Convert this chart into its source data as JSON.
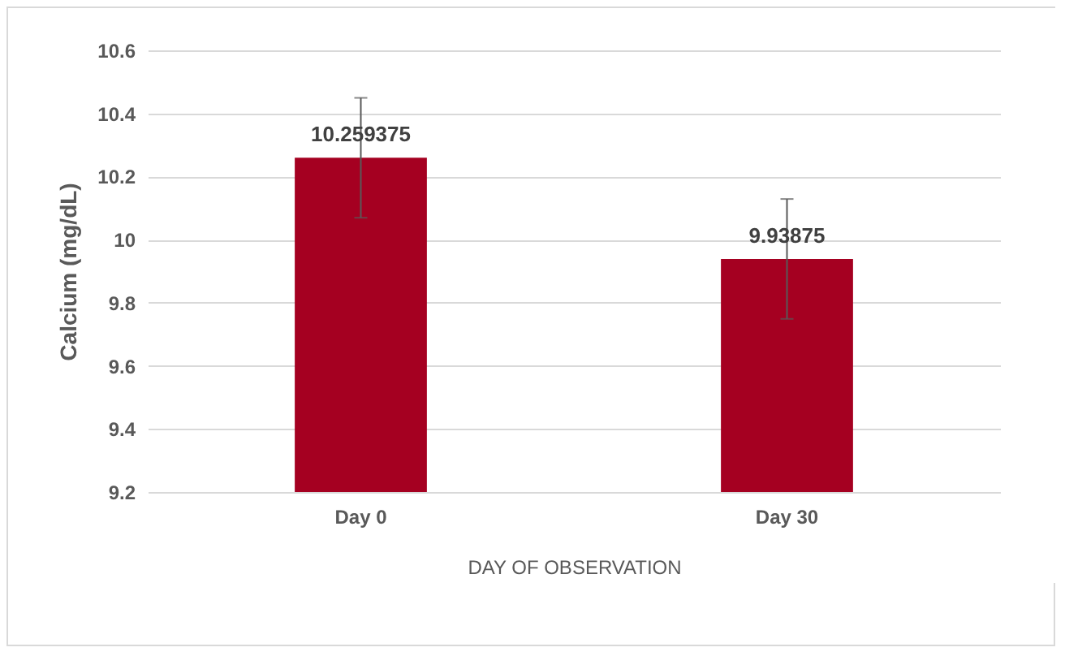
{
  "chart_data": {
    "type": "bar",
    "xlabel": "DAY OF OBSERVATION",
    "ylabel": "Calcium (mg/dL)",
    "categories": [
      "Day 0",
      "Day 30"
    ],
    "values": [
      10.259375,
      9.93875
    ],
    "errors": [
      0.19,
      0.19
    ],
    "color": "#a50021",
    "ylim": [
      9.2,
      10.6
    ],
    "yticks": [
      9.2,
      9.4,
      9.6,
      9.8,
      10,
      10.2,
      10.4,
      10.6
    ],
    "grid": "y",
    "data_labels": true
  }
}
